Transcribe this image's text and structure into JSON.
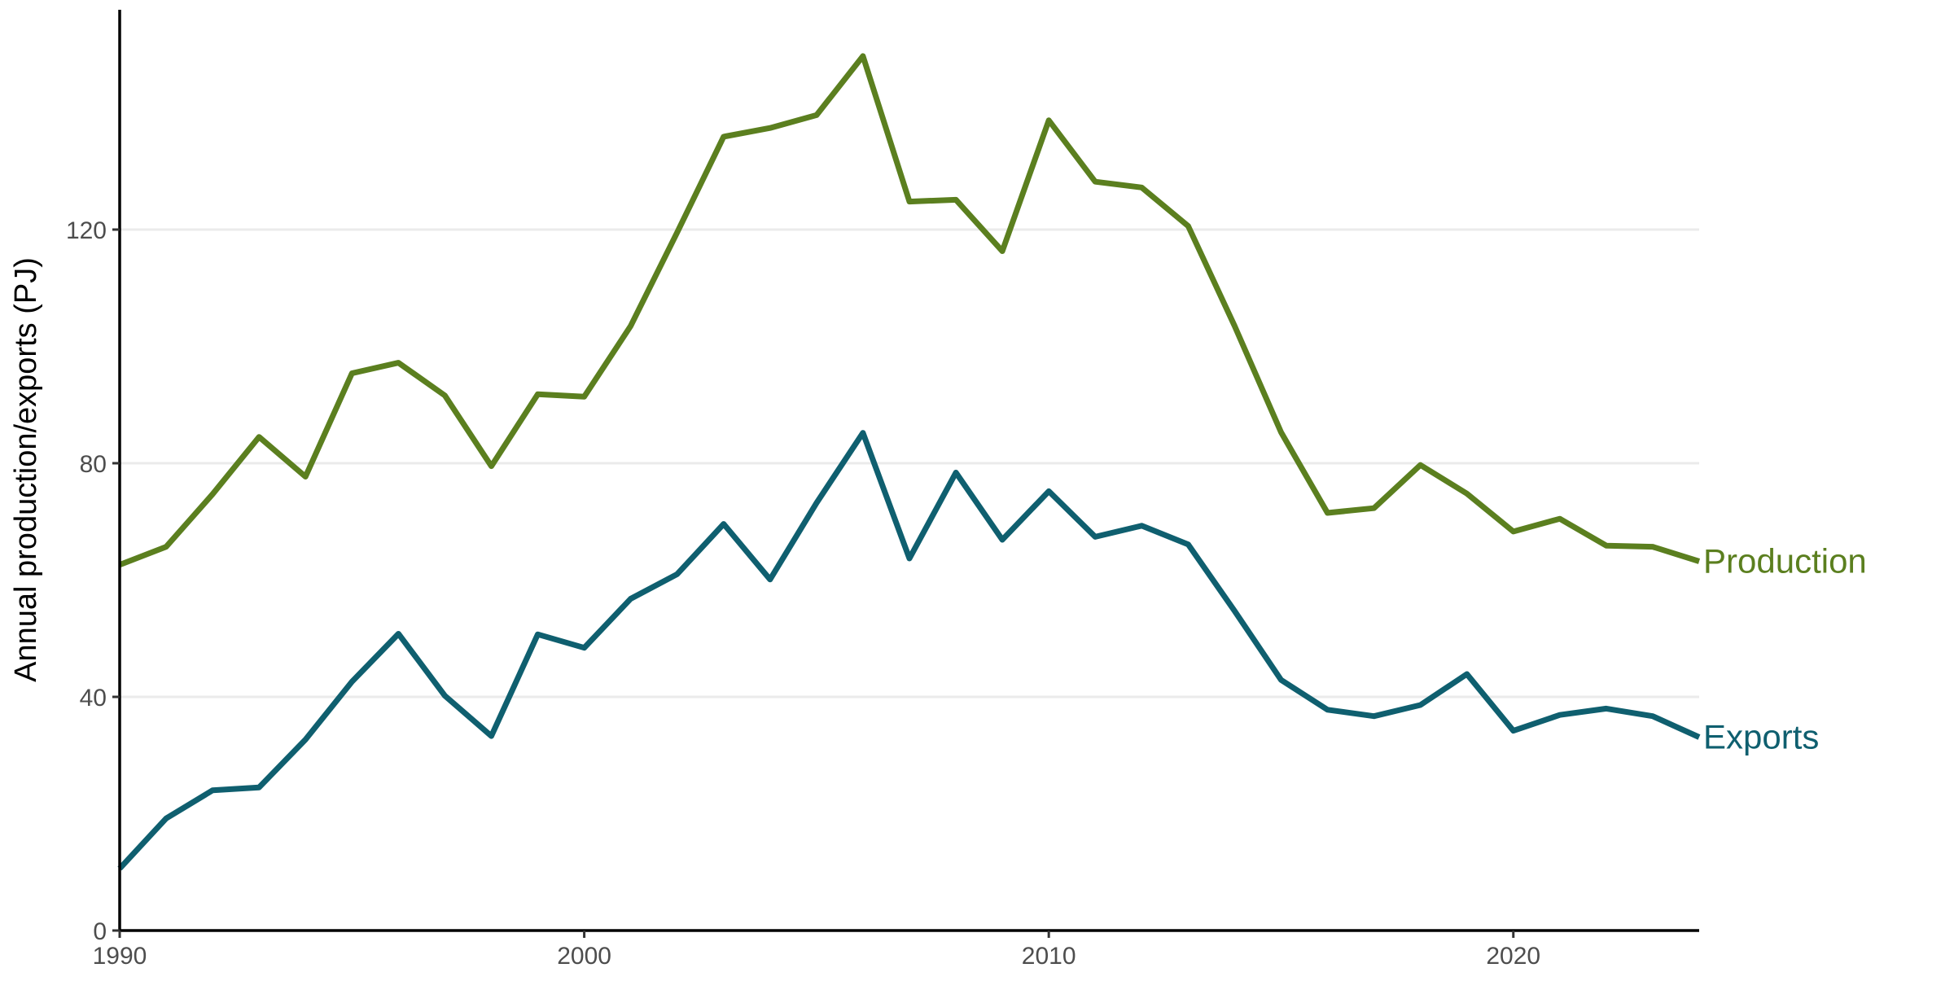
{
  "chart_data": {
    "type": "line",
    "title": "",
    "xlabel": "",
    "ylabel": "Annual production/exports (PJ)",
    "xlim": [
      1990,
      2024
    ],
    "ylim": [
      0,
      150
    ],
    "x_ticks": [
      "1990",
      "2000",
      "2010",
      "2020"
    ],
    "y_ticks": [
      "0",
      "40",
      "80",
      "120"
    ],
    "grid": "horizontal major gridlines",
    "legend": "direct labels at right end of each line",
    "x": [
      1990,
      1991,
      1992,
      1993,
      1994,
      1995,
      1996,
      1997,
      1998,
      1999,
      2000,
      2001,
      2002,
      2003,
      2004,
      2005,
      2006,
      2007,
      2008,
      2009,
      2010,
      2011,
      2012,
      2013,
      2014,
      2015,
      2016,
      2017,
      2018,
      2019,
      2020,
      2021,
      2022,
      2023,
      2024
    ],
    "series": [
      {
        "name": "Production",
        "color": "#5b7f1f",
        "values": [
          62.6,
          65.7,
          74.7,
          84.5,
          77.7,
          95.4,
          97.2,
          91.6,
          79.5,
          91.8,
          91.4,
          103.5,
          119.5,
          135.9,
          137.4,
          139.6,
          149.7,
          124.8,
          125.1,
          116.3,
          138.7,
          128.2,
          127.2,
          120.6,
          103.5,
          85.3,
          71.5,
          72.3,
          79.7,
          74.8,
          68.3,
          70.5,
          65.9,
          65.7,
          63.2
        ]
      },
      {
        "name": "Exports",
        "color": "#0f5f6f",
        "values": [
          10.6,
          19.2,
          24.0,
          24.5,
          32.7,
          42.6,
          50.8,
          40.2,
          33.3,
          50.7,
          48.4,
          56.8,
          61.0,
          69.6,
          60.1,
          73.2,
          85.2,
          63.7,
          78.4,
          66.9,
          75.2,
          67.4,
          69.3,
          66.1,
          54.7,
          42.9,
          37.8,
          36.7,
          38.6,
          43.9,
          34.2,
          36.9,
          38.0,
          36.7,
          33.1
        ]
      }
    ]
  }
}
